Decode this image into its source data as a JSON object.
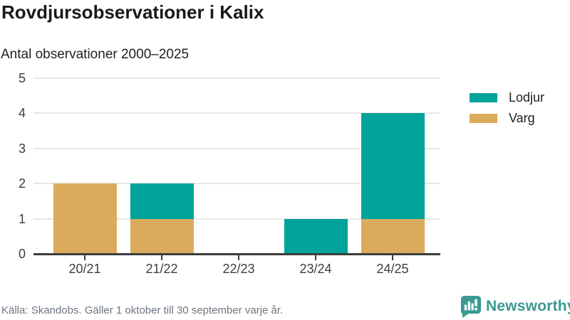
{
  "header": {
    "title": "Rovdjursobservationer i Kalix",
    "subtitle": "Antal observationer 2000–2025"
  },
  "chart_data": {
    "type": "bar",
    "stacked": true,
    "title": "Rovdjursobservationer i Kalix",
    "subtitle": "Antal observationer 2000–2025",
    "categories": [
      "20/21",
      "21/22",
      "22/23",
      "23/24",
      "24/25"
    ],
    "series": [
      {
        "name": "Lodjur",
        "color": "#00a39a",
        "values": [
          0,
          1,
          0,
          1,
          3
        ]
      },
      {
        "name": "Varg",
        "color": "#dbab5d",
        "values": [
          2,
          1,
          0,
          0,
          1
        ]
      }
    ],
    "stack_order_bottom_to_top": [
      "Varg",
      "Lodjur"
    ],
    "totals_per_category": [
      2,
      2,
      0,
      1,
      4
    ],
    "ylim": [
      0,
      5
    ],
    "yticks": [
      0,
      1,
      2,
      3,
      4,
      5
    ],
    "grid": true,
    "legend_position": "right",
    "xlabel": "",
    "ylabel": ""
  },
  "footer": {
    "source": "Källa: Skandobs. Gäller 1 oktober till 30 september varje år."
  },
  "logo": {
    "text": "Newsworthy",
    "color": "#3a9a92",
    "icon": "bar-chart-speech-bubble-icon"
  },
  "colors": {
    "lodjur": "#00a39a",
    "varg": "#dbab5d",
    "axis": "#3d3d3d",
    "gridline": "#e7e7e7",
    "title_text": "#191919",
    "footer_text": "#6e7680",
    "background": "#ffffff"
  }
}
